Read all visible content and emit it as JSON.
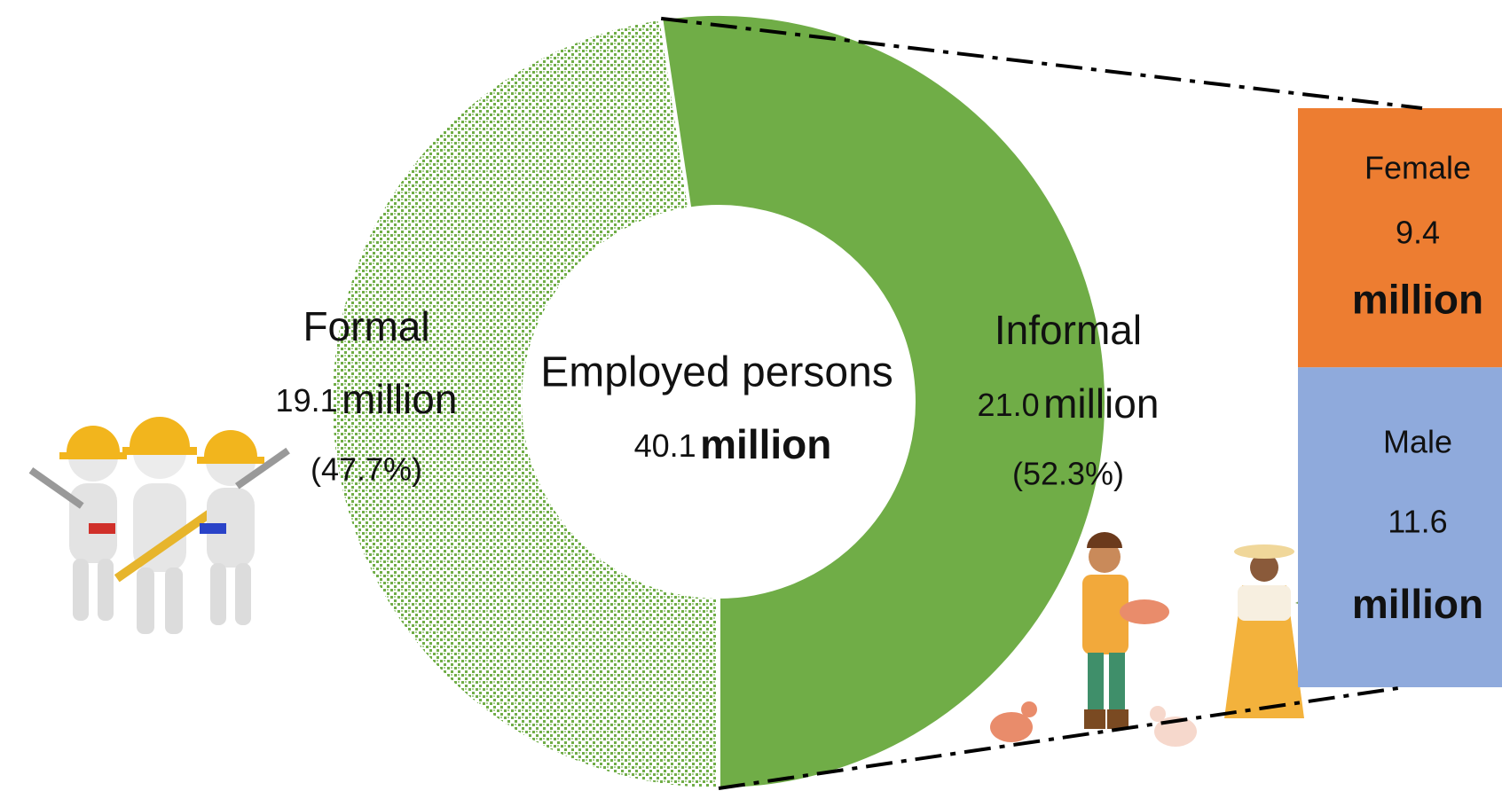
{
  "chart_data": {
    "type": "pie-of-bar",
    "center_label": "Employed persons",
    "total": 40.1,
    "unit": "million",
    "categories": [
      "Formal",
      "Informal"
    ],
    "values": [
      19.1,
      21.0
    ],
    "value_labels": [
      "19.1",
      "21.0"
    ],
    "percent_labels": [
      "(47.7%)",
      "(52.3%)"
    ],
    "colors": [
      "#70ad47",
      "#70ad47"
    ],
    "patterns": [
      "dots",
      "solid"
    ],
    "breakdown": {
      "categories": [
        "Female",
        "Male"
      ],
      "values": [
        9.4,
        11.6
      ],
      "colors": [
        "#ed7d31",
        "#8faadc"
      ]
    }
  }
}
